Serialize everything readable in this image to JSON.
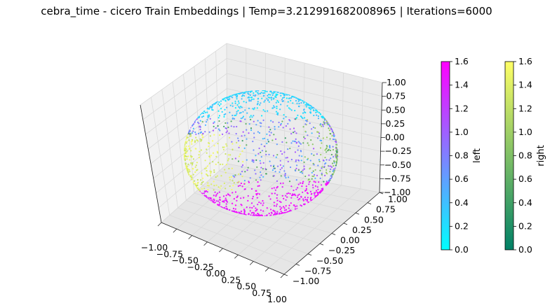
{
  "chart_data": {
    "type": "scatter",
    "projection": "3d",
    "title": "cebra_time - cicero Train Embeddings | Temp=3.212991682008965 | Iterations=6000",
    "axes": {
      "x": {
        "lim": [
          -1.0,
          1.0
        ],
        "ticks": [
          "−1.00",
          "−0.75",
          "−0.50",
          "−0.25",
          "0.00",
          "0.25",
          "0.50",
          "0.75",
          "1.00"
        ]
      },
      "y": {
        "lim": [
          -1.0,
          1.0
        ],
        "ticks": [
          "−1.00",
          "−0.75",
          "−0.50",
          "−0.25",
          "0.00",
          "0.25",
          "0.50",
          "0.75",
          "1.00"
        ]
      },
      "z": {
        "lim": [
          -1.0,
          1.0
        ],
        "ticks": [
          "−1.00",
          "−0.75",
          "−0.50",
          "−0.25",
          "0.00",
          "0.25",
          "0.50",
          "0.75",
          "1.00"
        ]
      },
      "grid": true
    },
    "series": [
      {
        "colormap": "cool",
        "label": "left",
        "color_range": [
          0.0,
          1.6
        ]
      },
      {
        "colormap": "summer",
        "label": "right",
        "color_range": [
          0.0,
          1.6
        ]
      }
    ],
    "colorbars": [
      {
        "label": "left",
        "colormap": "cool",
        "ticks": [
          "0.0",
          "0.2",
          "0.4",
          "0.6",
          "0.8",
          "1.0",
          "1.2",
          "1.4",
          "1.6"
        ]
      },
      {
        "label": "right",
        "colormap": "summer",
        "ticks": [
          "0.0",
          "0.2",
          "0.4",
          "0.6",
          "0.8",
          "1.0",
          "1.2",
          "1.4",
          "1.6"
        ]
      }
    ],
    "colors": {
      "cool_start": "#00ffff",
      "cool_end": "#ff00ff",
      "summer_start": "#008066",
      "summer_end": "#ffff66",
      "pane": "#f2f2f2",
      "grid": "#d9d9d9"
    }
  }
}
